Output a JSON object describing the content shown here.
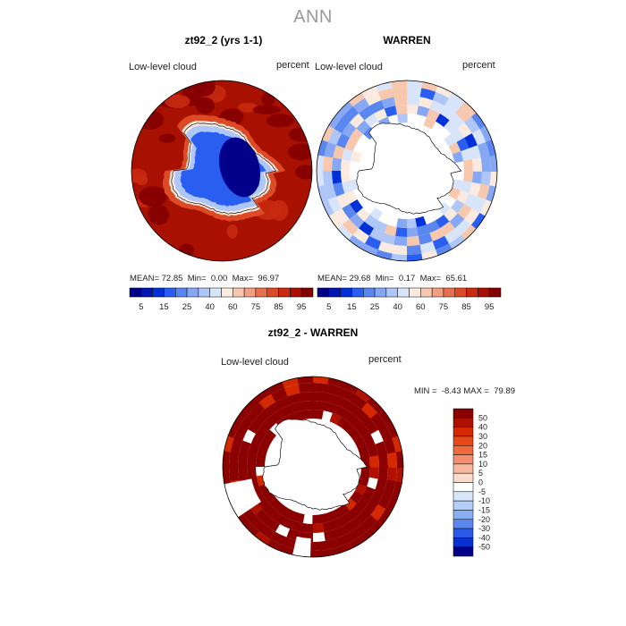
{
  "figure_title": "ANN",
  "panels": [
    {
      "title": "zt92_2 (yrs 1-1)",
      "variable": "Low-level cloud",
      "units": "percent",
      "stats": {
        "mean": "72.85",
        "min": "0.00",
        "max": "96.97"
      },
      "stats_labels": {
        "mean": "MEAN=",
        "min": "Min=",
        "max": "Max="
      }
    },
    {
      "title": "WARREN",
      "variable": "Low-level cloud",
      "units": "percent",
      "stats": {
        "mean": "29.68",
        "min": "0.17",
        "max": "65.61"
      },
      "stats_labels": {
        "mean": "MEAN=",
        "min": "Min=",
        "max": "Max="
      }
    },
    {
      "title": "zt92_2 - WARREN",
      "variable": "Low-level cloud",
      "units": "percent",
      "stats_text": {
        "min_label": "MIN =",
        "min": "-8.43",
        "max_label": "MAX =",
        "max": "79.89"
      }
    }
  ],
  "chart_data": [
    {
      "type": "heatmap",
      "projection": "south-polar stereographic",
      "title": "zt92_2 (yrs 1-1)",
      "colorbar": {
        "levels": [
          5,
          10,
          15,
          20,
          25,
          30,
          40,
          50,
          60,
          70,
          75,
          80,
          85,
          90,
          95
        ],
        "tick_labels": [
          "5",
          "15",
          "25",
          "40",
          "60",
          "75",
          "85",
          "95"
        ],
        "colors": [
          "#00008b",
          "#0016b0",
          "#0030d8",
          "#2a5ef0",
          "#5a86f0",
          "#86a8f4",
          "#aec6f8",
          "#d8e4fa",
          "#faeadf",
          "#f8c8ae",
          "#f0a080",
          "#e87050",
          "#dc4a26",
          "#c82a10",
          "#a81000",
          "#820000"
        ]
      }
    },
    {
      "type": "heatmap",
      "projection": "south-polar stereographic",
      "title": "WARREN",
      "colorbar": {
        "levels": [
          5,
          10,
          15,
          20,
          25,
          30,
          40,
          50,
          60,
          70,
          75,
          80,
          85,
          90,
          95
        ],
        "tick_labels": [
          "5",
          "15",
          "25",
          "40",
          "60",
          "75",
          "85",
          "95"
        ],
        "colors": [
          "#00008b",
          "#0016b0",
          "#0030d8",
          "#2a5ef0",
          "#5a86f0",
          "#86a8f4",
          "#aec6f8",
          "#d8e4fa",
          "#faeadf",
          "#f8c8ae",
          "#f0a080",
          "#e87050",
          "#dc4a26",
          "#c82a10",
          "#a81000",
          "#820000"
        ]
      }
    },
    {
      "type": "heatmap",
      "projection": "south-polar stereographic",
      "title": "zt92_2 - WARREN",
      "colorbar": {
        "orientation": "vertical",
        "tick_labels": [
          "50",
          "40",
          "30",
          "20",
          "15",
          "10",
          "5",
          "0",
          "-5",
          "-10",
          "-15",
          "-20",
          "-30",
          "-40",
          "-50"
        ],
        "colors": [
          "#8b0000",
          "#b01000",
          "#d42800",
          "#e84818",
          "#f06a3c",
          "#f49070",
          "#f8b8a0",
          "#fadccc",
          "#ffffff",
          "#d8e6fa",
          "#b4cef8",
          "#88aef4",
          "#5a86f0",
          "#2a5ae8",
          "#0a30d0",
          "#00008b"
        ]
      }
    }
  ]
}
